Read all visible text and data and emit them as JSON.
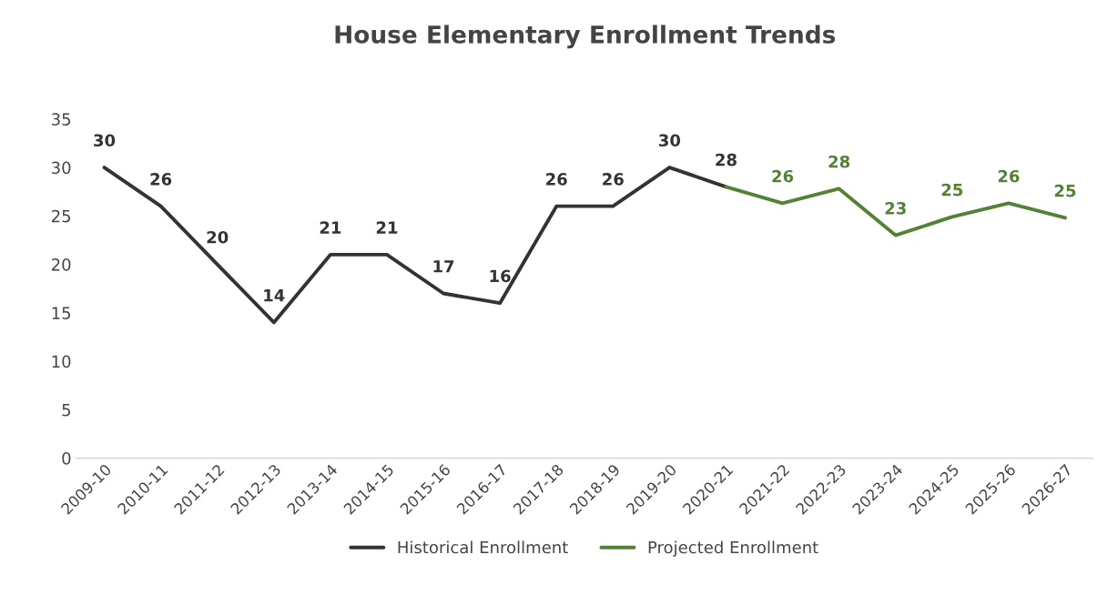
{
  "chart_data": {
    "type": "line",
    "title": "House Elementary Enrollment Trends",
    "categories": [
      "2009-10",
      "2010-11",
      "2011-12",
      "2012-13",
      "2013-14",
      "2014-15",
      "2015-16",
      "2016-17",
      "2017-18",
      "2018-19",
      "2019-20",
      "2020-21",
      "2021-22",
      "2022-23",
      "2023-24",
      "2024-25",
      "2025-26",
      "2026-27"
    ],
    "series": [
      {
        "name": "Historical Enrollment",
        "color": "#333333",
        "values": [
          30,
          26,
          20,
          14,
          21,
          21,
          17,
          16,
          26,
          26,
          30,
          28,
          null,
          null,
          null,
          null,
          null,
          null
        ],
        "value_labels": [
          "30",
          "26",
          "20",
          "14",
          "21",
          "21",
          "17",
          "16",
          "26",
          "26",
          "30",
          "28",
          null,
          null,
          null,
          null,
          null,
          null
        ]
      },
      {
        "name": "Projected Enrollment",
        "color": "#548235",
        "values": [
          null,
          null,
          null,
          null,
          null,
          null,
          null,
          null,
          null,
          null,
          null,
          28,
          26.3,
          27.8,
          23,
          24.9,
          26.3,
          24.8
        ],
        "value_labels": [
          null,
          null,
          null,
          null,
          null,
          null,
          null,
          null,
          null,
          null,
          null,
          null,
          "26",
          "28",
          "23",
          "25",
          "26",
          "25"
        ]
      }
    ],
    "ylim": [
      0,
      35
    ],
    "yticks": [
      0,
      5,
      10,
      15,
      20,
      25,
      30,
      35
    ],
    "grid": false,
    "legend": "bottom",
    "marker": "none",
    "line_style": "solid"
  }
}
